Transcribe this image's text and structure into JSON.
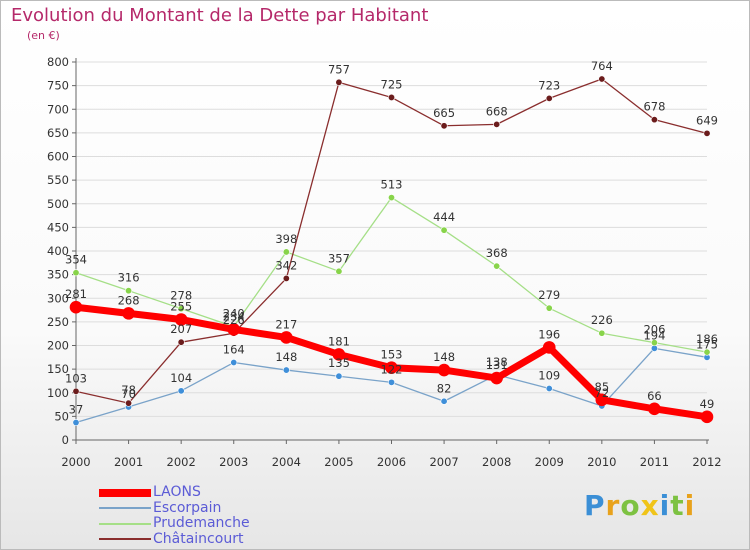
{
  "title": "Evolution du Montant de la Dette par Habitant",
  "unit": "(en €)",
  "logo_text": "Proxiti",
  "colors": {
    "title": "#b5296a",
    "axis": "#666666",
    "grid": "#dddddd",
    "labels": "#333333",
    "legend_text": "#5b5bd6"
  },
  "chart_data": {
    "type": "line",
    "title": "Evolution du Montant de la Dette par Habitant",
    "ylabel": "(en €)",
    "xlabel": "",
    "x": [
      "2000",
      "2001",
      "2002",
      "2003",
      "2004",
      "2005",
      "2006",
      "2007",
      "2008",
      "2009",
      "2010",
      "2011",
      "2012"
    ],
    "ylim": [
      0,
      800
    ],
    "yticks": [
      0,
      50,
      100,
      150,
      200,
      250,
      300,
      350,
      400,
      450,
      500,
      550,
      600,
      650,
      700,
      750,
      800
    ],
    "grid": true,
    "legend_position": "bottom-left",
    "series": [
      {
        "name": "LAONS",
        "color": "#ff0000",
        "marker": "#ff0000",
        "width": 7,
        "radius": 6,
        "values": [
          281,
          268,
          255,
          234,
          217,
          181,
          153,
          148,
          131,
          196,
          85,
          66,
          49
        ]
      },
      {
        "name": "Escorpain",
        "color": "#7aa3c9",
        "marker": "#3f8fd9",
        "width": 1.3,
        "radius": 3.2,
        "values": [
          37,
          70,
          104,
          164,
          148,
          135,
          122,
          82,
          138,
          109,
          72,
          194,
          175
        ]
      },
      {
        "name": "Prudemanche",
        "color": "#a5df87",
        "marker": "#88d44a",
        "width": 1.3,
        "radius": 3.2,
        "values": [
          354,
          316,
          278,
          240,
          398,
          357,
          513,
          444,
          368,
          279,
          226,
          206,
          186
        ]
      },
      {
        "name": "Châtaincourt",
        "color": "#8a2e2e",
        "marker": "#6b1c1c",
        "width": 1.3,
        "radius": 3.2,
        "values": [
          103,
          78,
          207,
          226,
          342,
          757,
          725,
          665,
          668,
          723,
          764,
          678,
          649
        ]
      }
    ]
  }
}
